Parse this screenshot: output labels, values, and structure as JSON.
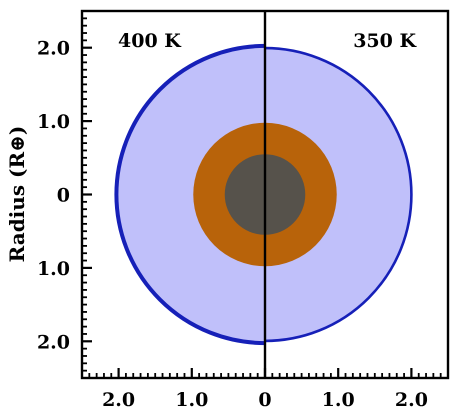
{
  "chart_data": {
    "type": "diagram",
    "ylabel": "Radius (R⊕)",
    "xlim": [
      -2.5,
      2.5
    ],
    "ylim": [
      -2.5,
      2.5
    ],
    "x_ticks": [
      {
        "value": -2,
        "label": "2.0"
      },
      {
        "value": -1,
        "label": "1.0"
      },
      {
        "value": 0,
        "label": "0"
      },
      {
        "value": 1,
        "label": "1.0"
      },
      {
        "value": 2,
        "label": "2.0"
      }
    ],
    "y_ticks": [
      {
        "value": 2,
        "label": "2.0"
      },
      {
        "value": 1,
        "label": "1.0"
      },
      {
        "value": 0,
        "label": "0"
      },
      {
        "value": -1,
        "label": "1.0"
      },
      {
        "value": -2,
        "label": "2.0"
      }
    ],
    "left_half": {
      "label": "400 K",
      "envelope_radius": 2.03
    },
    "right_half": {
      "label": "350 K",
      "envelope_radius": 2.0
    },
    "layers": [
      {
        "name": "envelope",
        "radius": 2.0,
        "color": "#c0c0fa",
        "edge": "#1620b8"
      },
      {
        "name": "mantle",
        "radius": 0.98,
        "color": "#b8630a"
      },
      {
        "name": "core",
        "radius": 0.55,
        "color": "#56524b"
      }
    ]
  }
}
